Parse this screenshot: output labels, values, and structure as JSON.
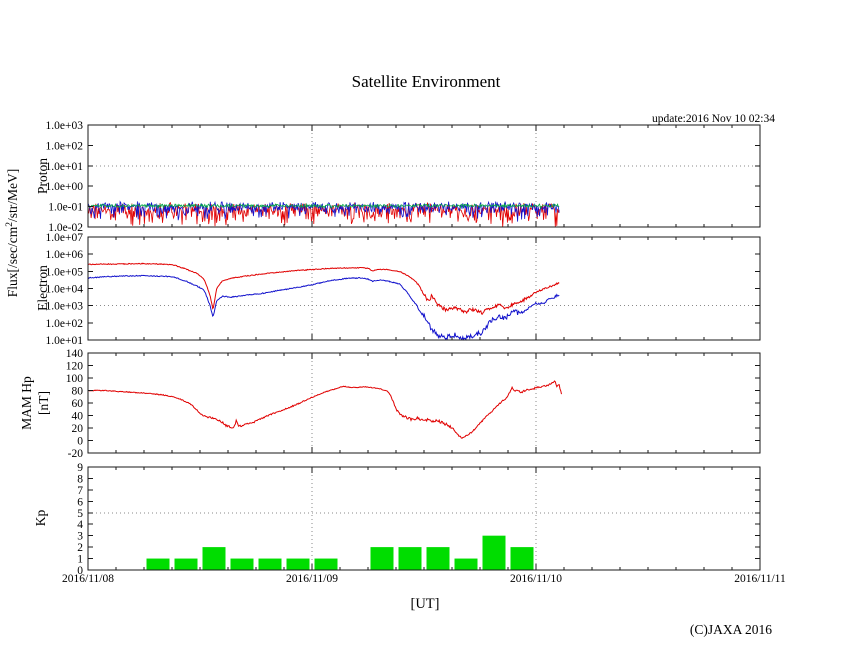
{
  "page": {
    "title": "Satellite Environment",
    "update_label": "update:2016 Nov 10 02:34",
    "copyright": "(C)JAXA 2016",
    "x_axis_label": "[UT]",
    "flux_axis_label_parts": [
      "Flux[/sec/cm",
      "2",
      "/str/MeV]"
    ]
  },
  "x_axis": {
    "tick_labels": [
      "2016/11/08",
      "2016/11/09",
      "2016/11/10",
      "2016/11/11"
    ],
    "span_days": 3,
    "minor_tick_hours": 3,
    "grid_days": [
      1,
      2
    ]
  },
  "chart_data": [
    {
      "type": "line",
      "id": "proton",
      "ylabel": "Proton",
      "yscale": "log",
      "ylim": [
        0.01,
        1000
      ],
      "ytick_labels": [
        "1.0e+03",
        "1.0e+02",
        "1.0e+01",
        "1.0e+00",
        "1.0e-01",
        "1.0e-02"
      ],
      "grid_value": 10,
      "data_end_day": 2.107,
      "series": [
        {
          "name": "proton-flux-red",
          "color": "#e00000",
          "style": "noise",
          "log_center": -0.95,
          "jitter": 0.3,
          "spike_down": 1.15
        },
        {
          "name": "proton-flux-blue",
          "color": "#1212cc",
          "style": "noise",
          "log_center": -0.88,
          "jitter": 0.28,
          "spike_down": 0.8
        },
        {
          "name": "proton-flux-green",
          "color": "#00a844",
          "style": "noise",
          "log_center": -0.94,
          "jitter": 0.14,
          "spike_down": 0.08
        }
      ]
    },
    {
      "type": "line",
      "id": "electron",
      "ylabel": "Electron",
      "yscale": "log",
      "ylim": [
        10,
        10000000
      ],
      "ytick_labels": [
        "1.0e+07",
        "1.0e+06",
        "1.0e+05",
        "1.0e+04",
        "1.0e+03",
        "1.0e+02",
        "1.0e+01"
      ],
      "grid_value": 1000,
      "data_end_day": 2.107,
      "series": [
        {
          "name": "electron-flux-red",
          "color": "#e00000",
          "style": "anchors-log",
          "noise": [
            [
              0,
              0.025
            ],
            [
              1.47,
              0.1
            ],
            [
              1.95,
              0.05
            ]
          ],
          "points": [
            [
              0.0,
              5.4
            ],
            [
              0.08,
              5.42
            ],
            [
              0.16,
              5.43
            ],
            [
              0.25,
              5.45
            ],
            [
              0.33,
              5.42
            ],
            [
              0.38,
              5.38
            ],
            [
              0.44,
              5.12
            ],
            [
              0.49,
              4.85
            ],
            [
              0.52,
              4.5
            ],
            [
              0.545,
              3.6
            ],
            [
              0.558,
              2.75
            ],
            [
              0.575,
              4.05
            ],
            [
              0.6,
              4.45
            ],
            [
              0.64,
              4.6
            ],
            [
              0.7,
              4.72
            ],
            [
              0.78,
              4.85
            ],
            [
              0.86,
              4.95
            ],
            [
              0.93,
              5.05
            ],
            [
              1.0,
              5.1
            ],
            [
              1.08,
              5.17
            ],
            [
              1.15,
              5.2
            ],
            [
              1.22,
              5.21
            ],
            [
              1.25,
              5.18
            ],
            [
              1.27,
              5.04
            ],
            [
              1.3,
              5.12
            ],
            [
              1.34,
              5.1
            ],
            [
              1.39,
              5.0
            ],
            [
              1.42,
              4.8
            ],
            [
              1.45,
              4.55
            ],
            [
              1.47,
              4.35
            ],
            [
              1.5,
              3.65
            ],
            [
              1.52,
              3.25
            ],
            [
              1.535,
              3.6
            ],
            [
              1.56,
              3.05
            ],
            [
              1.6,
              2.75
            ],
            [
              1.64,
              2.9
            ],
            [
              1.68,
              2.62
            ],
            [
              1.72,
              2.8
            ],
            [
              1.76,
              2.58
            ],
            [
              1.8,
              2.92
            ],
            [
              1.84,
              3.05
            ],
            [
              1.87,
              2.82
            ],
            [
              1.9,
              3.1
            ],
            [
              1.93,
              3.25
            ],
            [
              1.97,
              3.5
            ],
            [
              2.0,
              3.8
            ],
            [
              2.04,
              4.0
            ],
            [
              2.07,
              4.15
            ],
            [
              2.107,
              4.35
            ]
          ]
        },
        {
          "name": "electron-flux-blue",
          "color": "#1212cc",
          "style": "anchors-log",
          "noise": [
            [
              0,
              0.03
            ],
            [
              1.47,
              0.14
            ],
            [
              1.95,
              0.07
            ]
          ],
          "points": [
            [
              0.0,
              4.62
            ],
            [
              0.1,
              4.7
            ],
            [
              0.2,
              4.74
            ],
            [
              0.3,
              4.73
            ],
            [
              0.38,
              4.68
            ],
            [
              0.44,
              4.42
            ],
            [
              0.49,
              4.12
            ],
            [
              0.52,
              3.88
            ],
            [
              0.545,
              3.0
            ],
            [
              0.558,
              2.3
            ],
            [
              0.575,
              3.3
            ],
            [
              0.6,
              3.55
            ],
            [
              0.64,
              3.5
            ],
            [
              0.7,
              3.6
            ],
            [
              0.78,
              3.72
            ],
            [
              0.86,
              3.9
            ],
            [
              0.93,
              4.05
            ],
            [
              1.0,
              4.22
            ],
            [
              1.08,
              4.45
            ],
            [
              1.15,
              4.58
            ],
            [
              1.22,
              4.62
            ],
            [
              1.25,
              4.55
            ],
            [
              1.27,
              4.42
            ],
            [
              1.3,
              4.5
            ],
            [
              1.34,
              4.42
            ],
            [
              1.39,
              4.27
            ],
            [
              1.42,
              3.85
            ],
            [
              1.45,
              3.3
            ],
            [
              1.47,
              3.0
            ],
            [
              1.5,
              2.4
            ],
            [
              1.53,
              1.7
            ],
            [
              1.56,
              1.3
            ],
            [
              1.6,
              1.15
            ],
            [
              1.64,
              1.3
            ],
            [
              1.68,
              1.1
            ],
            [
              1.72,
              1.25
            ],
            [
              1.76,
              1.45
            ],
            [
              1.79,
              2.0
            ],
            [
              1.83,
              2.4
            ],
            [
              1.86,
              2.25
            ],
            [
              1.9,
              2.65
            ],
            [
              1.93,
              2.55
            ],
            [
              1.97,
              2.9
            ],
            [
              2.0,
              3.15
            ],
            [
              2.03,
              3.1
            ],
            [
              2.06,
              3.4
            ],
            [
              2.09,
              3.55
            ],
            [
              2.107,
              3.7
            ]
          ]
        }
      ]
    },
    {
      "type": "line",
      "id": "mam-hp",
      "ylabel": "MAM Hp",
      "yunit": "[nT]",
      "yscale": "linear",
      "ylim": [
        -20,
        140
      ],
      "ytick_step": 20,
      "data_end_day": 2.115,
      "series": [
        {
          "name": "mam-hp-red",
          "color": "#e00000",
          "style": "anchors",
          "noise": [
            [
              0,
              0.7
            ],
            [
              0.5,
              1.5
            ],
            [
              0.75,
              1.0
            ],
            [
              1.0,
              0.6
            ],
            [
              1.35,
              2.0
            ],
            [
              1.63,
              1.2
            ],
            [
              1.9,
              1.5
            ],
            [
              2.0,
              1.2
            ]
          ],
          "points": [
            [
              0.0,
              80
            ],
            [
              0.06,
              80
            ],
            [
              0.12,
              79
            ],
            [
              0.2,
              77
            ],
            [
              0.28,
              75
            ],
            [
              0.335,
              73
            ],
            [
              0.4,
              68
            ],
            [
              0.455,
              59
            ],
            [
              0.486,
              49
            ],
            [
              0.5,
              43
            ],
            [
              0.53,
              38
            ],
            [
              0.56,
              35
            ],
            [
              0.58,
              33
            ],
            [
              0.6,
              29
            ],
            [
              0.615,
              24
            ],
            [
              0.635,
              22
            ],
            [
              0.652,
              20
            ],
            [
              0.662,
              32
            ],
            [
              0.672,
              23
            ],
            [
              0.69,
              24
            ],
            [
              0.72,
              27
            ],
            [
              0.75,
              31
            ],
            [
              0.78,
              36
            ],
            [
              0.81,
              41
            ],
            [
              0.85,
              46
            ],
            [
              0.9,
              53
            ],
            [
              0.94,
              59
            ],
            [
              0.98,
              66
            ],
            [
              1.02,
              72
            ],
            [
              1.06,
              78
            ],
            [
              1.1,
              82
            ],
            [
              1.14,
              87
            ],
            [
              1.17,
              85
            ],
            [
              1.2,
              85
            ],
            [
              1.24,
              86
            ],
            [
              1.28,
              84
            ],
            [
              1.31,
              82
            ],
            [
              1.335,
              79
            ],
            [
              1.35,
              73
            ],
            [
              1.37,
              54
            ],
            [
              1.393,
              41
            ],
            [
              1.42,
              37
            ],
            [
              1.45,
              33
            ],
            [
              1.47,
              36
            ],
            [
              1.5,
              31
            ],
            [
              1.52,
              34
            ],
            [
              1.54,
              30
            ],
            [
              1.56,
              32
            ],
            [
              1.585,
              28
            ],
            [
              1.61,
              24
            ],
            [
              1.63,
              19
            ],
            [
              1.645,
              12
            ],
            [
              1.66,
              6
            ],
            [
              1.675,
              4
            ],
            [
              1.69,
              8
            ],
            [
              1.705,
              11
            ],
            [
              1.737,
              22
            ],
            [
              1.764,
              33
            ],
            [
              1.795,
              44
            ],
            [
              1.84,
              60
            ],
            [
              1.87,
              69
            ],
            [
              1.888,
              80
            ],
            [
              1.893,
              85
            ],
            [
              1.9,
              80
            ],
            [
              1.92,
              81
            ],
            [
              1.93,
              76
            ],
            [
              1.95,
              80
            ],
            [
              1.97,
              82
            ],
            [
              1.99,
              83
            ],
            [
              2.0,
              85
            ],
            [
              2.02,
              86
            ],
            [
              2.05,
              88
            ],
            [
              2.07,
              92
            ],
            [
              2.085,
              95
            ],
            [
              2.094,
              86
            ],
            [
              2.103,
              89
            ],
            [
              2.115,
              73
            ]
          ]
        }
      ]
    },
    {
      "type": "bar",
      "id": "kp",
      "ylabel": "Kp",
      "yscale": "linear",
      "ylim": [
        0,
        9
      ],
      "ytick_step": 1,
      "grid_value": 5,
      "bar_color": "#00dd00",
      "interval_hours": 3,
      "bars": [
        {
          "date": "2016/11/08",
          "hour": 6,
          "kp": 1
        },
        {
          "date": "2016/11/08",
          "hour": 9,
          "kp": 1
        },
        {
          "date": "2016/11/08",
          "hour": 12,
          "kp": 2
        },
        {
          "date": "2016/11/08",
          "hour": 15,
          "kp": 1
        },
        {
          "date": "2016/11/08",
          "hour": 18,
          "kp": 1
        },
        {
          "date": "2016/11/08",
          "hour": 21,
          "kp": 1
        },
        {
          "date": "2016/11/09",
          "hour": 0,
          "kp": 1
        },
        {
          "date": "2016/11/09",
          "hour": 6,
          "kp": 2
        },
        {
          "date": "2016/11/09",
          "hour": 9,
          "kp": 2
        },
        {
          "date": "2016/11/09",
          "hour": 12,
          "kp": 2
        },
        {
          "date": "2016/11/09",
          "hour": 15,
          "kp": 1
        },
        {
          "date": "2016/11/09",
          "hour": 18,
          "kp": 3
        },
        {
          "date": "2016/11/09",
          "hour": 21,
          "kp": 2
        }
      ]
    }
  ]
}
